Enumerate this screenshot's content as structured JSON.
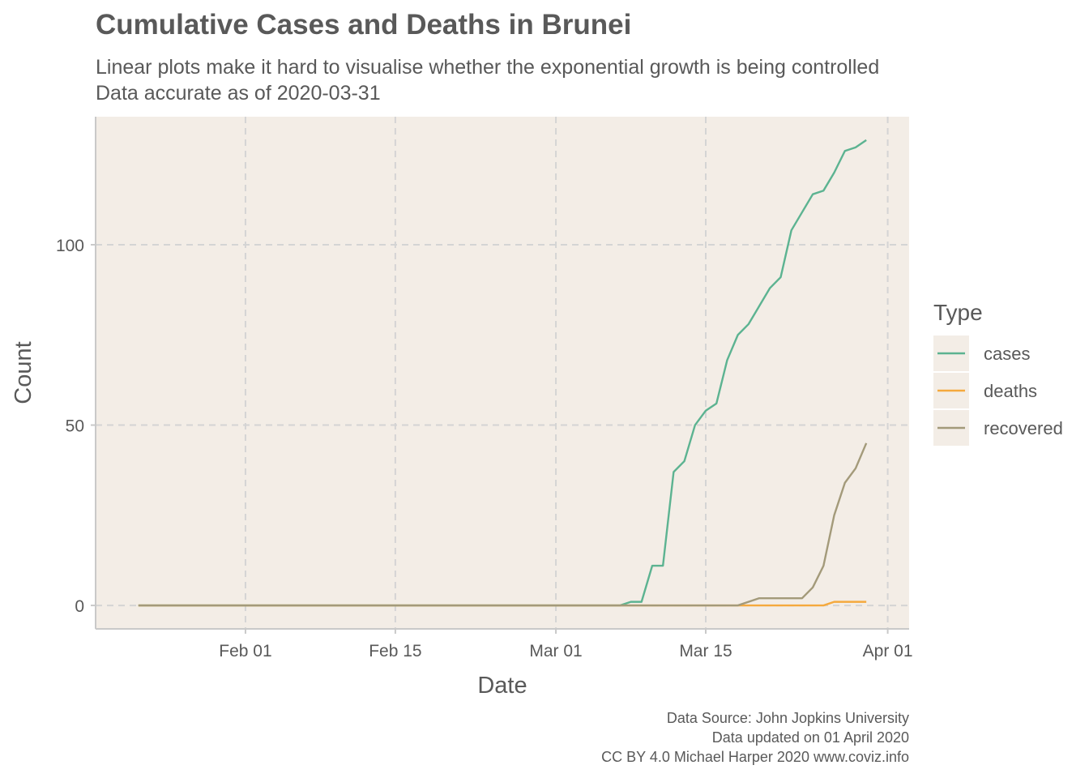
{
  "chart_data": {
    "type": "line",
    "title": "Cumulative Cases and Deaths in Brunei",
    "subtitle": [
      "Linear plots make it hard to visualise whether the exponential growth is being controlled",
      "Data accurate as of 2020-03-31"
    ],
    "xlabel": "Date",
    "ylabel": "Count",
    "x_range": [
      "2020-01-18",
      "2020-04-03"
    ],
    "ylim": [
      -6.5,
      135.5
    ],
    "x_ticks": [
      {
        "date": "2020-02-01",
        "label": "Feb 01"
      },
      {
        "date": "2020-02-15",
        "label": "Feb 15"
      },
      {
        "date": "2020-03-01",
        "label": "Mar 01"
      },
      {
        "date": "2020-03-15",
        "label": "Mar 15"
      },
      {
        "date": "2020-04-01",
        "label": "Apr 01"
      }
    ],
    "y_ticks": [
      0,
      50,
      100
    ],
    "grid": true,
    "panel_background": "#f3ede6",
    "legend": {
      "title": "Type",
      "position": "right"
    },
    "series": [
      {
        "name": "cases",
        "color": "#5cb391",
        "points": [
          [
            "2020-01-22",
            0
          ],
          [
            "2020-03-07",
            0
          ],
          [
            "2020-03-08",
            1
          ],
          [
            "2020-03-09",
            1
          ],
          [
            "2020-03-10",
            11
          ],
          [
            "2020-03-11",
            11
          ],
          [
            "2020-03-12",
            37
          ],
          [
            "2020-03-13",
            40
          ],
          [
            "2020-03-14",
            50
          ],
          [
            "2020-03-15",
            54
          ],
          [
            "2020-03-16",
            56
          ],
          [
            "2020-03-17",
            68
          ],
          [
            "2020-03-18",
            75
          ],
          [
            "2020-03-19",
            78
          ],
          [
            "2020-03-20",
            83
          ],
          [
            "2020-03-21",
            88
          ],
          [
            "2020-03-22",
            91
          ],
          [
            "2020-03-23",
            104
          ],
          [
            "2020-03-24",
            109
          ],
          [
            "2020-03-25",
            114
          ],
          [
            "2020-03-26",
            115
          ],
          [
            "2020-03-27",
            120
          ],
          [
            "2020-03-28",
            126
          ],
          [
            "2020-03-29",
            127
          ],
          [
            "2020-03-30",
            129
          ]
        ]
      },
      {
        "name": "deaths",
        "color": "#f5a93d",
        "points": [
          [
            "2020-01-22",
            0
          ],
          [
            "2020-03-26",
            0
          ],
          [
            "2020-03-27",
            1
          ],
          [
            "2020-03-30",
            1
          ]
        ]
      },
      {
        "name": "recovered",
        "color": "#a39a7a",
        "points": [
          [
            "2020-01-22",
            0
          ],
          [
            "2020-03-18",
            0
          ],
          [
            "2020-03-20",
            2
          ],
          [
            "2020-03-24",
            2
          ],
          [
            "2020-03-25",
            5
          ],
          [
            "2020-03-26",
            11
          ],
          [
            "2020-03-27",
            25
          ],
          [
            "2020-03-28",
            34
          ],
          [
            "2020-03-29",
            38
          ],
          [
            "2020-03-30",
            45
          ]
        ]
      }
    ],
    "caption": [
      "Data Source: John Jopkins University",
      "Data updated on 01 April 2020",
      "CC BY 4.0 Michael Harper 2020 www.coviz.info"
    ]
  }
}
